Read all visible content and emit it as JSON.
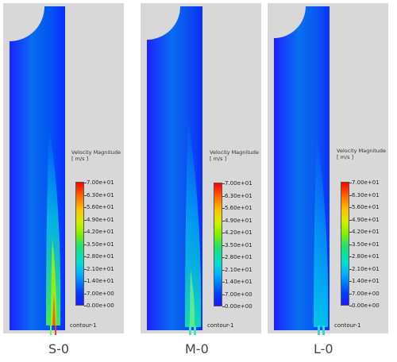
{
  "legend": {
    "title_line1": "Velocity Magnitude",
    "title_line2": "[ m/s ]",
    "ticks": [
      "7.00e+01",
      "6.30e+01",
      "5.60e+01",
      "4.90e+01",
      "4.20e+01",
      "3.50e+01",
      "2.80e+01",
      "2.10e+01",
      "1.40e+01",
      "7.00e+00",
      "0.00e+00"
    ]
  },
  "contour_label": "contour-1",
  "colors": {
    "background": "#d8d8d8",
    "low": "#1a1aff",
    "mid": "#20e070",
    "high": "#ff0000"
  },
  "panels": [
    {
      "case": "S-0"
    },
    {
      "case": "M-0"
    },
    {
      "case": "L-0"
    }
  ]
}
